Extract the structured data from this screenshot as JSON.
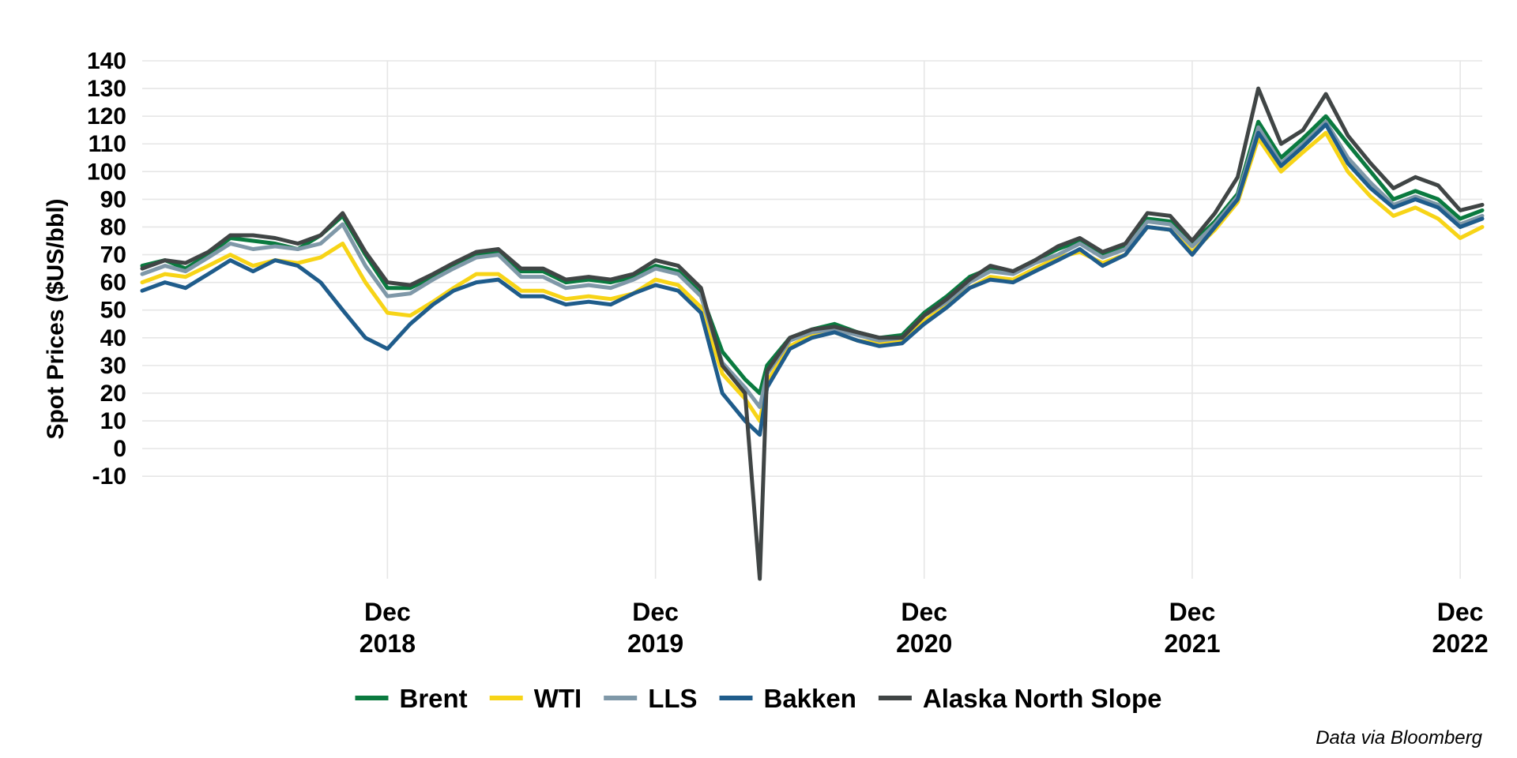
{
  "chart_data": {
    "type": "line",
    "title": "",
    "xlabel": "",
    "ylabel": "Spot Prices ($US/bbl)",
    "caption": "Data via Bloomberg",
    "grid": true,
    "legend_position": "bottom",
    "ylim": [
      -47,
      140
    ],
    "y_ticks": [
      140,
      130,
      120,
      110,
      100,
      90,
      80,
      70,
      60,
      50,
      40,
      30,
      20,
      10,
      0,
      -10
    ],
    "xlim": [
      "2018-01-01",
      "2022-12-31"
    ],
    "x_ticks": [
      {
        "date": "2018-12-01",
        "label": [
          "Dec",
          "2018"
        ]
      },
      {
        "date": "2019-12-01",
        "label": [
          "Dec",
          "2019"
        ]
      },
      {
        "date": "2020-12-01",
        "label": [
          "Dec",
          "2020"
        ]
      },
      {
        "date": "2021-12-01",
        "label": [
          "Dec",
          "2021"
        ]
      },
      {
        "date": "2022-12-01",
        "label": [
          "Dec",
          "2022"
        ]
      }
    ],
    "x": [
      "2018-01-01",
      "2018-02-01",
      "2018-03-01",
      "2018-04-01",
      "2018-05-01",
      "2018-06-01",
      "2018-07-01",
      "2018-08-01",
      "2018-09-01",
      "2018-10-01",
      "2018-11-01",
      "2018-12-01",
      "2019-01-01",
      "2019-02-01",
      "2019-03-01",
      "2019-04-01",
      "2019-05-01",
      "2019-06-01",
      "2019-07-01",
      "2019-08-01",
      "2019-09-01",
      "2019-10-01",
      "2019-11-01",
      "2019-12-01",
      "2020-01-01",
      "2020-02-01",
      "2020-03-01",
      "2020-04-01",
      "2020-04-21",
      "2020-05-01",
      "2020-06-01",
      "2020-07-01",
      "2020-08-01",
      "2020-09-01",
      "2020-10-01",
      "2020-11-01",
      "2020-12-01",
      "2021-01-01",
      "2021-02-01",
      "2021-03-01",
      "2021-04-01",
      "2021-05-01",
      "2021-06-01",
      "2021-07-01",
      "2021-08-01",
      "2021-09-01",
      "2021-10-01",
      "2021-11-01",
      "2021-12-01",
      "2022-01-01",
      "2022-02-01",
      "2022-03-01",
      "2022-04-01",
      "2022-05-01",
      "2022-06-01",
      "2022-07-01",
      "2022-08-01",
      "2022-09-01",
      "2022-10-01",
      "2022-11-01",
      "2022-12-01",
      "2022-12-31"
    ],
    "series": [
      {
        "name": "Brent",
        "color": "#0a7a3f",
        "values": [
          66,
          68,
          65,
          70,
          76,
          75,
          74,
          72,
          77,
          84,
          70,
          58,
          58,
          62,
          66,
          70,
          71,
          64,
          64,
          60,
          61,
          60,
          62,
          66,
          64,
          56,
          35,
          25,
          20,
          30,
          40,
          43,
          45,
          42,
          40,
          41,
          49,
          55,
          62,
          65,
          64,
          68,
          72,
          75,
          70,
          73,
          83,
          82,
          74,
          82,
          92,
          118,
          105,
          112,
          120,
          110,
          100,
          90,
          93,
          90,
          83,
          86
        ]
      },
      {
        "name": "WTI",
        "color": "#f7d417",
        "values": [
          60,
          63,
          62,
          66,
          70,
          66,
          68,
          67,
          69,
          74,
          60,
          49,
          48,
          53,
          58,
          63,
          63,
          57,
          57,
          54,
          55,
          54,
          56,
          61,
          59,
          51,
          27,
          18,
          10,
          24,
          37,
          41,
          42,
          39,
          38,
          39,
          46,
          52,
          58,
          62,
          61,
          65,
          69,
          71,
          67,
          70,
          80,
          79,
          71,
          79,
          89,
          112,
          100,
          107,
          114,
          100,
          91,
          84,
          87,
          83,
          76,
          80
        ]
      },
      {
        "name": "LLS",
        "color": "#7f98a8",
        "values": [
          63,
          66,
          64,
          69,
          74,
          72,
          73,
          72,
          74,
          81,
          66,
          55,
          56,
          61,
          65,
          69,
          70,
          62,
          62,
          58,
          59,
          58,
          61,
          65,
          63,
          55,
          31,
          22,
          15,
          27,
          39,
          42,
          43,
          41,
          39,
          40,
          48,
          53,
          60,
          64,
          63,
          67,
          70,
          74,
          69,
          72,
          82,
          81,
          73,
          81,
          91,
          116,
          103,
          110,
          118,
          105,
          96,
          88,
          91,
          88,
          81,
          84
        ]
      },
      {
        "name": "Bakken",
        "color": "#1f5c8b",
        "values": [
          57,
          60,
          58,
          63,
          68,
          64,
          68,
          66,
          60,
          50,
          40,
          36,
          45,
          52,
          57,
          60,
          61,
          55,
          55,
          52,
          53,
          52,
          56,
          59,
          57,
          49,
          20,
          10,
          5,
          22,
          36,
          40,
          42,
          39,
          37,
          38,
          45,
          51,
          58,
          61,
          60,
          64,
          68,
          72,
          66,
          70,
          80,
          79,
          70,
          80,
          90,
          114,
          102,
          109,
          117,
          103,
          94,
          87,
          90,
          87,
          80,
          83
        ]
      },
      {
        "name": "Alaska North Slope",
        "color": "#404545",
        "values": [
          65,
          68,
          67,
          71,
          77,
          77,
          76,
          74,
          77,
          85,
          71,
          60,
          59,
          63,
          67,
          71,
          72,
          65,
          65,
          61,
          62,
          61,
          63,
          68,
          66,
          58,
          30,
          20,
          -47,
          28,
          40,
          43,
          44,
          42,
          40,
          40,
          48,
          54,
          61,
          66,
          64,
          68,
          73,
          76,
          71,
          74,
          85,
          84,
          75,
          85,
          98,
          130,
          110,
          115,
          128,
          113,
          103,
          94,
          98,
          95,
          86,
          88
        ]
      }
    ]
  }
}
